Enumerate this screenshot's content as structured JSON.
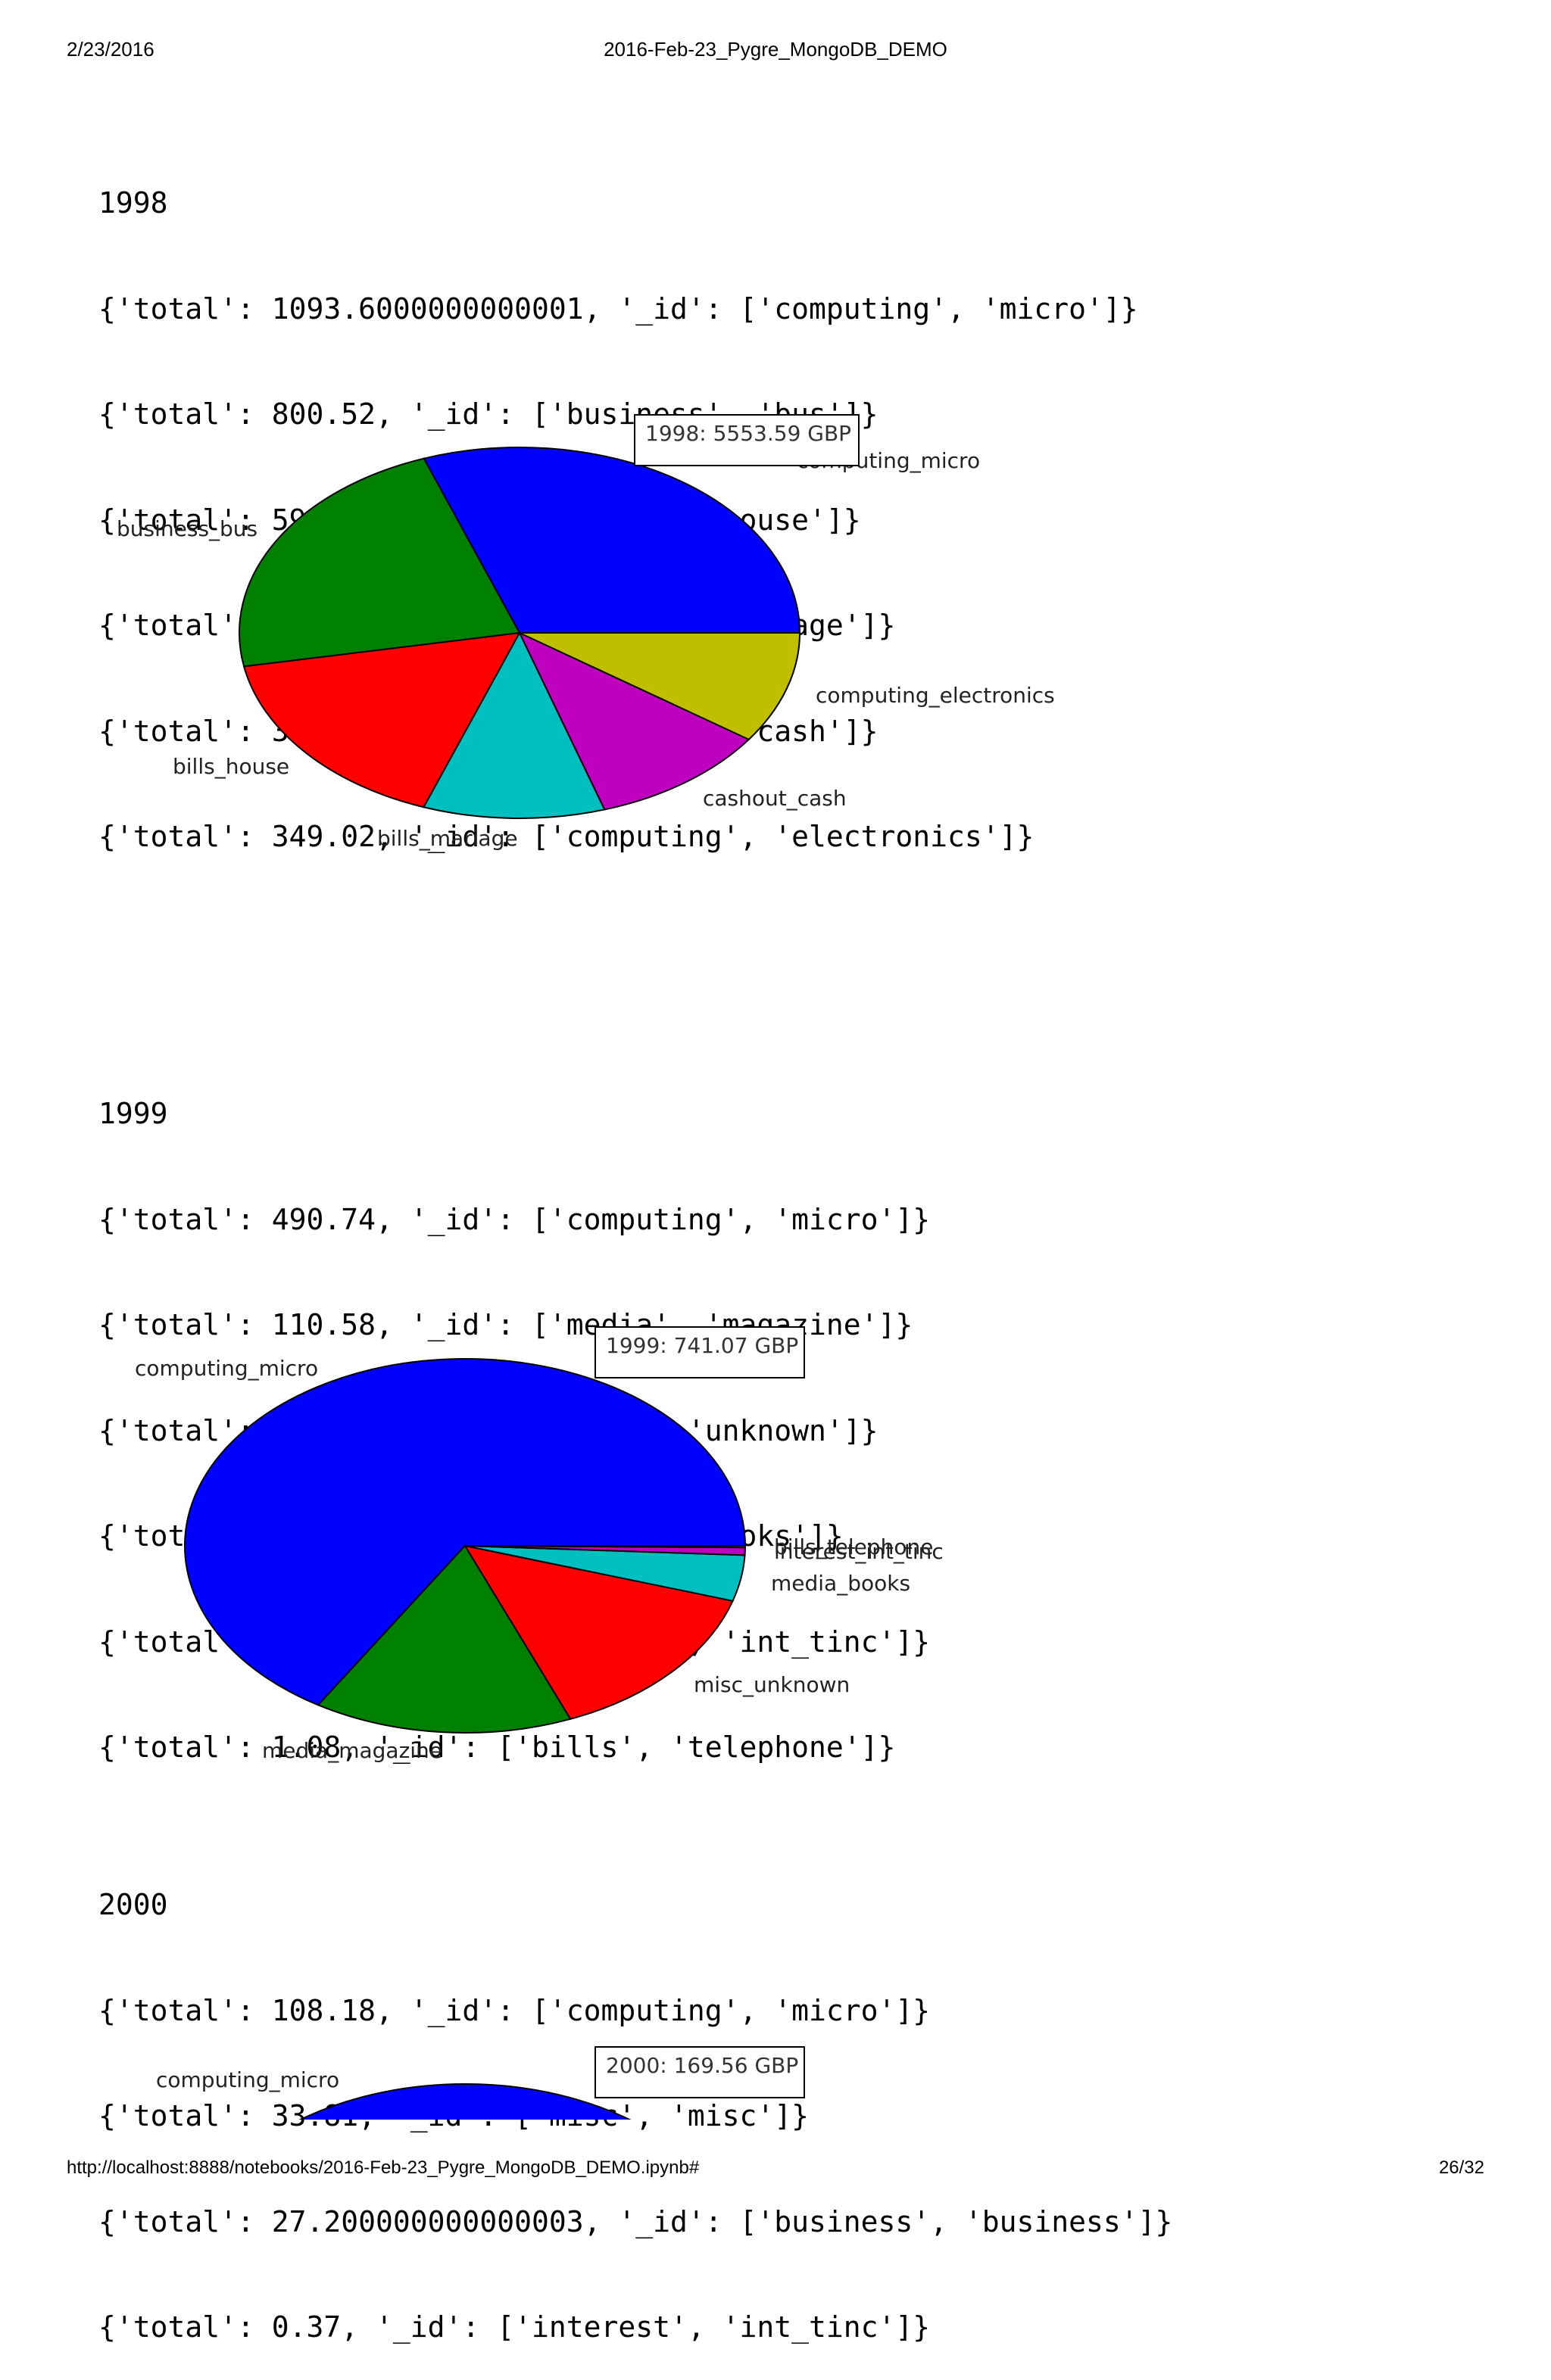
{
  "header": {
    "date": "2/23/2016",
    "title": "2016-Feb-23_Pygre_MongoDB_DEMO"
  },
  "footer": {
    "url": "http://localhost:8888/notebooks/2016-Feb-23_Pygre_MongoDB_DEMO.ipynb#",
    "page": "26/32"
  },
  "sections": [
    {
      "year": "1998",
      "lines": [
        "{'total': 1093.6000000000001, '_id': ['computing', 'micro']}",
        "{'total': 800.52, '_id': ['business', 'bus']}",
        "{'total': 592.29, '_id': ['bills', 'house']}",
        "{'total': 374.73, '_id': ['bills', 'mariage']}",
        "{'total': 370.33, '_id': ['cashout', 'cash']}",
        "{'total': 349.02, '_id': ['computing', 'electronics']}"
      ]
    },
    {
      "year": "1999",
      "lines": [
        "{'total': 490.74, '_id': ['computing', 'micro']}",
        "{'total': 110.58, '_id': ['media', 'magazine']}",
        "{'total': 104.46, '_id': ['misc', 'unknown']}",
        "{'total': 29.39, '_id': ['media', 'books']}",
        "{'total': 4.82, '_id': ['interest', 'int_tinc']}",
        "{'total': 1.08, '_id': ['bills', 'telephone']}"
      ]
    },
    {
      "year": "2000",
      "lines": [
        "{'total': 108.18, '_id': ['computing', 'micro']}",
        "{'total': 33.81, '_id': ['misc', 'misc']}",
        "{'total': 27.200000000000003, '_id': ['business', 'business']}",
        "{'total': 0.37, '_id': ['interest', 'int_tinc']}"
      ]
    }
  ],
  "chart_data": [
    {
      "type": "pie",
      "title": "1998: 5553.59 GBP",
      "categories": [
        "computing_micro",
        "business_bus",
        "bills_house",
        "bills_mariage",
        "cashout_cash",
        "computing_electronics"
      ],
      "values": [
        1093.6,
        800.52,
        592.29,
        374.73,
        370.33,
        349.02
      ],
      "colors": [
        "#0000ff",
        "#008000",
        "#ff0000",
        "#00bfbf",
        "#bf00bf",
        "#bfbf00"
      ]
    },
    {
      "type": "pie",
      "title": "1999: 741.07 GBP",
      "categories": [
        "computing_micro",
        "media_magazine",
        "misc_unknown",
        "media_books",
        "interest_int_tinc",
        "bills_telephone"
      ],
      "values": [
        490.74,
        110.58,
        104.46,
        29.39,
        4.82,
        1.08
      ],
      "colors": [
        "#0000ff",
        "#008000",
        "#ff0000",
        "#00bfbf",
        "#bf00bf",
        "#bfbf00"
      ]
    },
    {
      "type": "pie",
      "title": "2000: 169.56 GBP",
      "categories": [
        "computing_micro"
      ],
      "values": [
        108.18
      ],
      "colors": [
        "#0000ff"
      ]
    }
  ]
}
